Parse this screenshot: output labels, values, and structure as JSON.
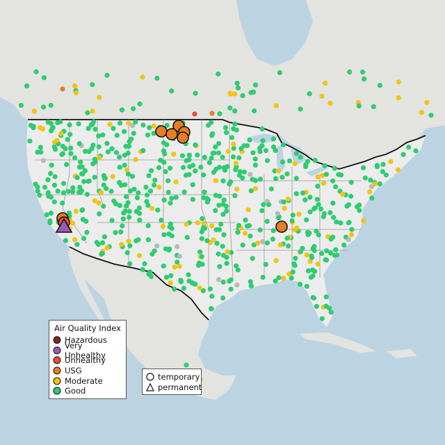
{
  "legend": {
    "title": "Air Quality Index",
    "categories": [
      {
        "label": "Hazardous",
        "color": "#7e2a25"
      },
      {
        "label": "Very Unhealthy",
        "color": "#9b59b6"
      },
      {
        "label": "Unhealthy",
        "color": "#e74c3c"
      },
      {
        "label": "USG",
        "color": "#e67e22"
      },
      {
        "label": "Moderate",
        "color": "#f1c40f"
      },
      {
        "label": "Good",
        "color": "#2ecc71"
      }
    ]
  },
  "monitor_legend": {
    "temporary": "temporary",
    "permanent": "permanent"
  },
  "colors": {
    "water": "#bcd3e2",
    "land_us": "#ececec",
    "land_other": "#e3e3e0",
    "state_line": "#9a9a9a",
    "border": "#111111",
    "no_data": "#b8b8b8"
  }
}
